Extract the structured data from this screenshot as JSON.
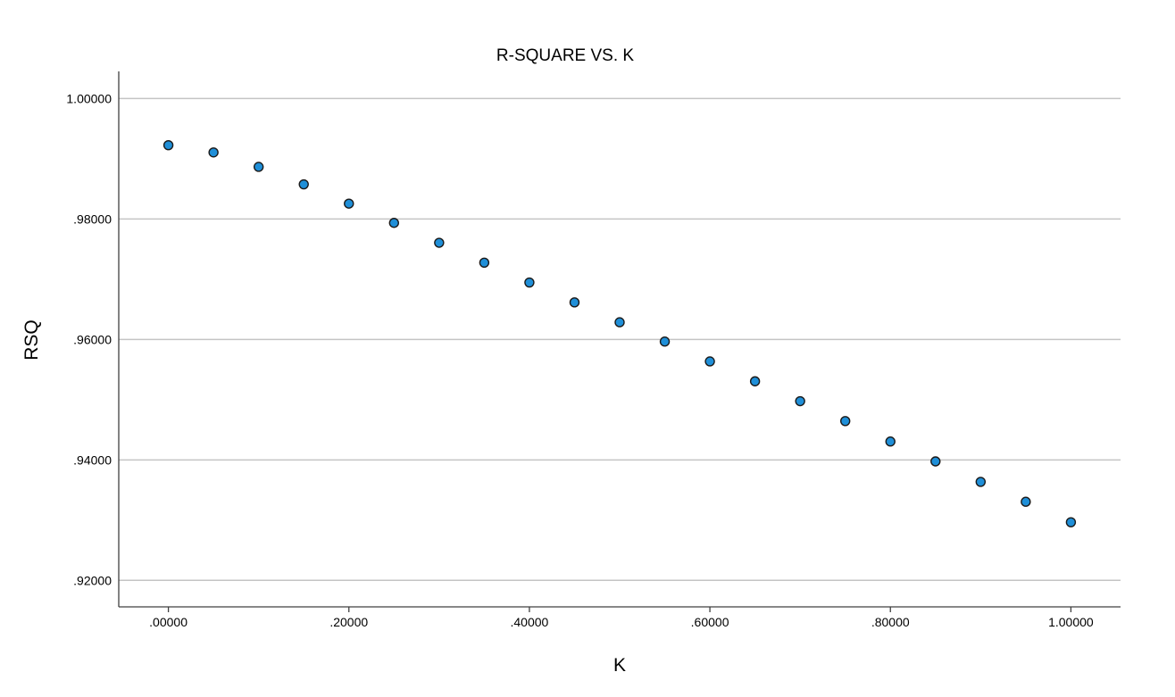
{
  "chart_data": {
    "type": "scatter",
    "title": "R-SQUARE VS. K",
    "xlabel": "K",
    "ylabel": "RSQ",
    "xlim": [
      -0.055,
      1.055
    ],
    "ylim": [
      0.9156,
      1.0045
    ],
    "x_ticks": [
      0.0,
      0.2,
      0.4,
      0.6,
      0.8,
      1.0
    ],
    "x_tick_labels": [
      ".00000",
      ".20000",
      ".40000",
      ".60000",
      ".80000",
      "1.00000"
    ],
    "y_ticks": [
      0.92,
      0.94,
      0.96,
      0.98,
      1.0
    ],
    "y_tick_labels": [
      ".92000",
      ".94000",
      ".96000",
      ".98000",
      "1.00000"
    ],
    "grid": "horizontal",
    "point_color": "#1f8fd8",
    "series": [
      {
        "x": [
          0.0,
          0.05,
          0.1,
          0.15,
          0.2,
          0.25,
          0.3,
          0.35,
          0.4,
          0.45,
          0.5,
          0.55,
          0.6,
          0.65,
          0.7,
          0.75,
          0.8,
          0.85,
          0.9,
          0.95,
          1.0
        ],
        "values": [
          0.99225,
          0.99105,
          0.98865,
          0.98575,
          0.98255,
          0.97935,
          0.97605,
          0.97275,
          0.96945,
          0.96615,
          0.96285,
          0.95965,
          0.95635,
          0.95305,
          0.94975,
          0.94645,
          0.94305,
          0.93975,
          0.93635,
          0.93305,
          0.92965
        ]
      }
    ]
  }
}
